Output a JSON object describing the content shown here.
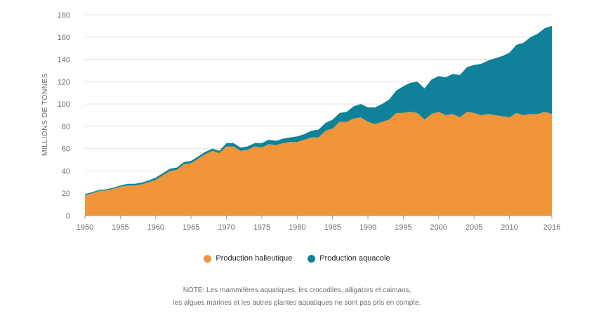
{
  "chart_data": {
    "type": "area",
    "stacked": true,
    "ylabel": "MILLIONS DE TONNES",
    "xlabel": "",
    "ylim": [
      0,
      180
    ],
    "yticks": [
      0,
      20,
      40,
      60,
      80,
      100,
      120,
      140,
      160,
      180
    ],
    "xticks": [
      1950,
      1955,
      1960,
      1965,
      1970,
      1975,
      1980,
      1985,
      1990,
      1995,
      2000,
      2005,
      2010,
      2016
    ],
    "xlim": [
      1950,
      2016
    ],
    "grid": "horizontal",
    "legend_position": "bottom-center",
    "x": [
      1950,
      1951,
      1952,
      1953,
      1954,
      1955,
      1956,
      1957,
      1958,
      1959,
      1960,
      1961,
      1962,
      1963,
      1964,
      1965,
      1966,
      1967,
      1968,
      1969,
      1970,
      1971,
      1972,
      1973,
      1974,
      1975,
      1976,
      1977,
      1978,
      1979,
      1980,
      1981,
      1982,
      1983,
      1984,
      1985,
      1986,
      1987,
      1988,
      1989,
      1990,
      1991,
      1992,
      1993,
      1994,
      1995,
      1996,
      1997,
      1998,
      1999,
      2000,
      2001,
      2002,
      2003,
      2004,
      2005,
      2006,
      2007,
      2008,
      2009,
      2010,
      2011,
      2012,
      2013,
      2014,
      2015,
      2016
    ],
    "series": [
      {
        "name": "Production halieutique",
        "color": "#f0953a",
        "values": [
          18,
          20,
          22,
          22.5,
          24,
          26,
          27,
          27,
          28,
          30,
          32,
          36,
          40,
          41,
          46,
          47,
          51,
          55,
          58,
          56,
          62,
          62,
          58,
          59,
          62,
          61,
          64,
          63,
          65,
          66,
          66,
          68,
          70,
          70,
          76,
          78,
          84,
          84,
          87,
          88,
          84,
          82,
          84,
          86,
          92,
          92,
          93,
          92,
          86,
          91,
          93,
          90,
          91,
          88,
          93,
          92,
          90,
          91,
          90,
          89,
          88,
          92,
          90,
          91,
          91,
          93,
          91
        ]
      },
      {
        "name": "Production aquacole",
        "color": "#0f8299",
        "values": [
          1,
          1,
          1,
          1,
          1,
          1,
          1.5,
          1.5,
          1.5,
          1.5,
          2,
          2,
          2,
          2,
          2,
          2,
          2,
          2,
          2,
          2,
          3,
          3,
          3,
          3,
          3,
          4,
          4,
          4,
          4,
          4,
          5,
          5,
          6,
          7,
          7,
          8,
          8,
          9,
          11,
          12,
          13,
          15,
          16,
          18,
          20,
          24,
          26,
          28,
          28,
          31,
          32,
          34,
          36,
          38,
          40,
          43,
          46,
          48,
          51,
          54,
          58,
          61,
          65,
          69,
          72,
          75,
          79
        ]
      }
    ]
  },
  "legend": {
    "items": [
      "Production halieutique",
      "Production aquacole"
    ]
  },
  "note": {
    "line1": "NOTE: Les mammifères aquatiques, les crocodiles, alligators et caimans,",
    "line2": "les algues marines et les autres plantes aquatiques ne sont pas pris en compte."
  }
}
